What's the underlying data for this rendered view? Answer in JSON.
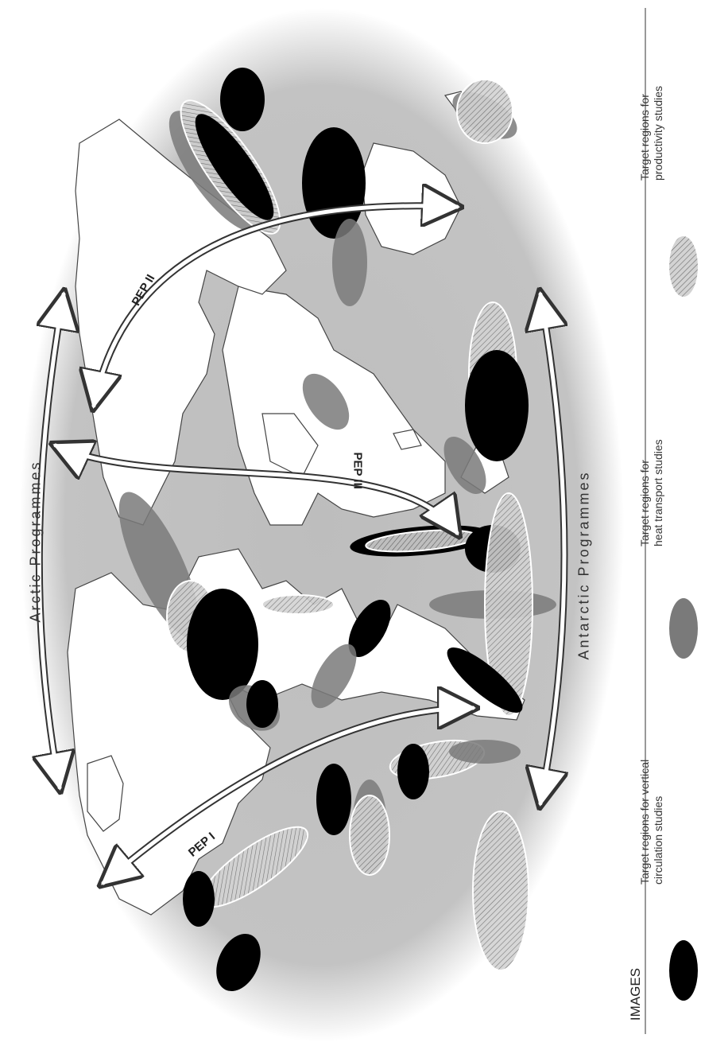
{
  "map": {
    "programme_labels": {
      "arctic": "Arctic Programmes",
      "antarctic": "Antarctic Programmes"
    },
    "pep_labels": {
      "pep1": "PEP I",
      "pep2": "PEP II",
      "pep3": "PEP III"
    }
  },
  "legend": {
    "title": "IMAGES",
    "items": [
      {
        "label_line1": "Target regions for vertical",
        "label_line2": "circulation studies",
        "style": "solid-black",
        "color": "#000000"
      },
      {
        "label_line1": "Target regions for",
        "label_line2": "heat transport studies",
        "style": "solid-gray",
        "color": "#808080"
      },
      {
        "label_line1": "Target regions for",
        "label_line2": "productivity studies",
        "style": "hatched-light",
        "color": "#bdbdbd"
      }
    ]
  },
  "colors": {
    "ocean": "#bdbdbd",
    "land": "#ffffff",
    "vertical": "#000000",
    "heat": "#7a7a7a",
    "productivity": "#c6c6c6"
  }
}
